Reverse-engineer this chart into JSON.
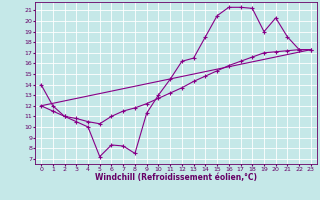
{
  "xlabel": "Windchill (Refroidissement éolien,°C)",
  "xlim": [
    -0.5,
    23.5
  ],
  "ylim": [
    6.5,
    21.8
  ],
  "xticks": [
    0,
    1,
    2,
    3,
    4,
    5,
    6,
    7,
    8,
    9,
    10,
    11,
    12,
    13,
    14,
    15,
    16,
    17,
    18,
    19,
    20,
    21,
    22,
    23
  ],
  "yticks": [
    7,
    8,
    9,
    10,
    11,
    12,
    13,
    14,
    15,
    16,
    17,
    18,
    19,
    20,
    21
  ],
  "bg_color": "#c5e8e8",
  "line_color": "#880088",
  "grid_color": "#ffffff",
  "curve1_x": [
    0,
    1,
    2,
    3,
    4,
    5,
    6,
    7,
    8,
    9,
    10,
    11,
    12,
    13,
    14,
    15,
    16,
    17,
    18,
    19,
    20,
    21,
    22,
    23
  ],
  "curve1_y": [
    14.0,
    12.0,
    11.0,
    10.5,
    10.0,
    7.2,
    8.3,
    8.2,
    7.5,
    11.3,
    13.0,
    14.5,
    16.2,
    16.5,
    18.5,
    20.5,
    21.3,
    21.3,
    21.2,
    19.0,
    20.3,
    18.5,
    17.3,
    17.3
  ],
  "curve2_x": [
    0,
    1,
    2,
    3,
    4,
    5,
    6,
    7,
    8,
    9,
    10,
    11,
    12,
    13,
    14,
    15,
    16,
    17,
    18,
    19,
    20,
    21,
    22,
    23
  ],
  "curve2_y": [
    12.0,
    11.5,
    11.0,
    10.8,
    10.5,
    10.3,
    11.0,
    11.5,
    11.8,
    12.2,
    12.7,
    13.2,
    13.7,
    14.3,
    14.8,
    15.3,
    15.8,
    16.2,
    16.6,
    17.0,
    17.1,
    17.2,
    17.3,
    17.3
  ],
  "line3_x": [
    0,
    23
  ],
  "line3_y": [
    12.0,
    17.3
  ],
  "marker_style": "+",
  "marker_size": 3.5,
  "font_color": "#660066",
  "tick_fontsize": 4.5,
  "label_fontsize": 5.5,
  "lw": 0.8
}
